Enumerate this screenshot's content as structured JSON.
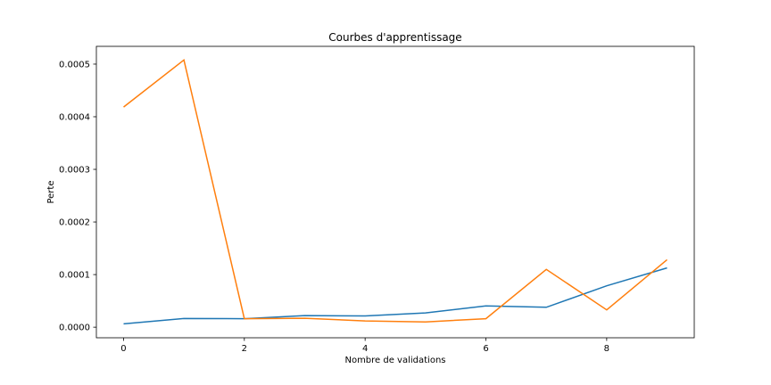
{
  "chart_data": {
    "type": "line",
    "title": "Courbes d'apprentissage",
    "xlabel": "Nombre de validations",
    "ylabel": "Perte",
    "xlim": [
      -0.45,
      9.45
    ],
    "ylim": [
      -2.01e-05,
      0.0005338
    ],
    "xticks": [
      0,
      2,
      4,
      6,
      8
    ],
    "xtick_labels": [
      "0",
      "2",
      "4",
      "6",
      "8"
    ],
    "yticks": [
      0,
      0.0001,
      0.0002,
      0.0003,
      0.0004,
      0.0005
    ],
    "ytick_labels": [
      "0.0000",
      "0.0001",
      "0.0002",
      "0.0003",
      "0.0004",
      "0.0005"
    ],
    "grid": false,
    "x": [
      0,
      1,
      2,
      3,
      4,
      5,
      6,
      7,
      8,
      9
    ],
    "series": [
      {
        "color": "#1f77b4",
        "values": [
          6.3e-06,
          1.65e-05,
          1.61e-05,
          2.21e-05,
          2.14e-05,
          2.71e-05,
          4.04e-05,
          3.79e-05,
          7.87e-05,
          0.0001127
        ]
      },
      {
        "color": "#ff7f0e",
        "values": [
          0.0004185,
          0.0005079,
          1.61e-05,
          1.7e-05,
          1.19e-05,
          1.01e-05,
          1.61e-05,
          0.0001098,
          3.3e-05,
          0.0001283
        ]
      }
    ]
  }
}
